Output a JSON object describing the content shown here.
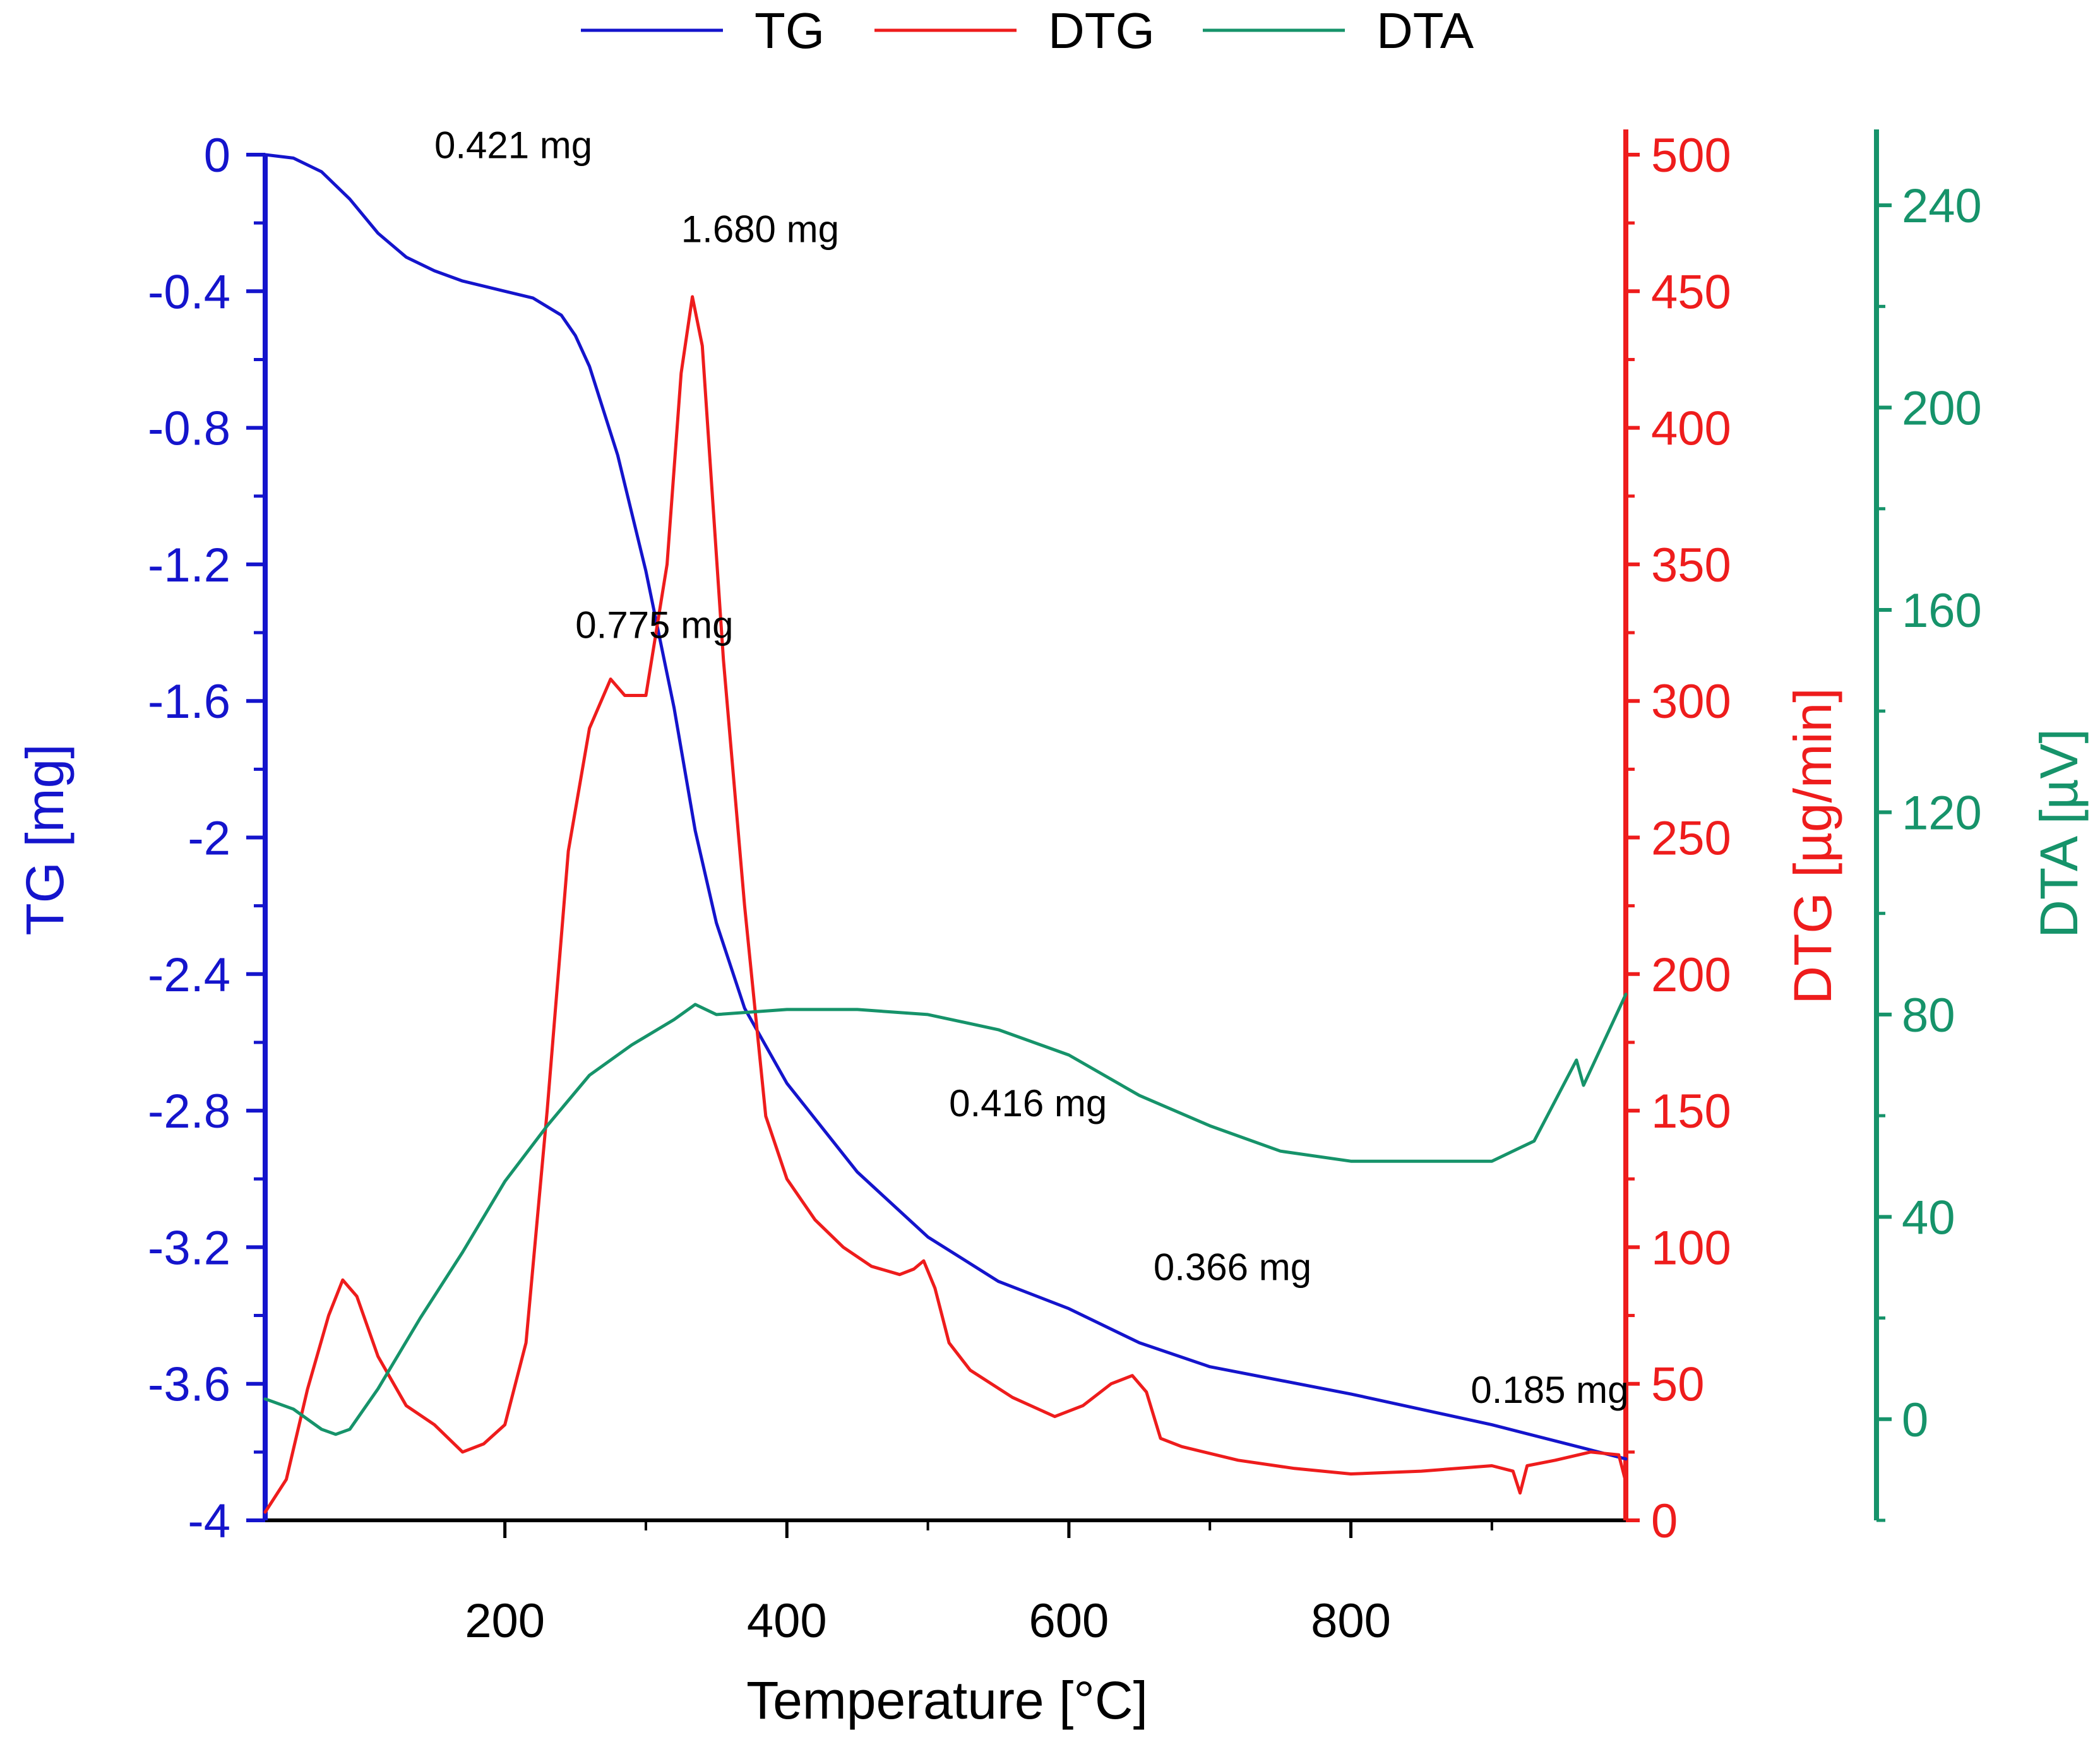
{
  "chart_data": {
    "type": "line",
    "title": "",
    "xlabel": "Temperature [°C]",
    "xlim": [
      30,
      995
    ],
    "xticks": [
      200,
      400,
      600,
      800
    ],
    "legend_position": "top-center",
    "series": [
      {
        "name": "TG",
        "axis": "left",
        "color": "#1414cc",
        "points": [
          [
            30,
            0
          ],
          [
            50,
            -0.01
          ],
          [
            70,
            -0.05
          ],
          [
            90,
            -0.13
          ],
          [
            110,
            -0.23
          ],
          [
            130,
            -0.3
          ],
          [
            150,
            -0.34
          ],
          [
            170,
            -0.37
          ],
          [
            200,
            -0.4
          ],
          [
            220,
            -0.42
          ],
          [
            240,
            -0.47
          ],
          [
            250,
            -0.53
          ],
          [
            260,
            -0.62
          ],
          [
            280,
            -0.88
          ],
          [
            300,
            -1.22
          ],
          [
            320,
            -1.62
          ],
          [
            335,
            -1.98
          ],
          [
            350,
            -2.25
          ],
          [
            370,
            -2.5
          ],
          [
            400,
            -2.72
          ],
          [
            450,
            -2.98
          ],
          [
            500,
            -3.17
          ],
          [
            550,
            -3.3
          ],
          [
            600,
            -3.38
          ],
          [
            620,
            -3.42
          ],
          [
            650,
            -3.48
          ],
          [
            700,
            -3.55
          ],
          [
            800,
            -3.63
          ],
          [
            900,
            -3.72
          ],
          [
            995,
            -3.82
          ]
        ]
      },
      {
        "name": "DTG",
        "axis": "right",
        "color": "#ee1c1c",
        "points": [
          [
            30,
            3
          ],
          [
            45,
            15
          ],
          [
            60,
            48
          ],
          [
            75,
            75
          ],
          [
            85,
            88
          ],
          [
            95,
            82
          ],
          [
            110,
            60
          ],
          [
            130,
            42
          ],
          [
            150,
            35
          ],
          [
            170,
            25
          ],
          [
            185,
            28
          ],
          [
            200,
            35
          ],
          [
            215,
            65
          ],
          [
            230,
            150
          ],
          [
            245,
            245
          ],
          [
            260,
            290
          ],
          [
            275,
            308
          ],
          [
            285,
            302
          ],
          [
            300,
            302
          ],
          [
            315,
            350
          ],
          [
            325,
            420
          ],
          [
            333,
            448
          ],
          [
            340,
            430
          ],
          [
            355,
            315
          ],
          [
            370,
            225
          ],
          [
            385,
            148
          ],
          [
            400,
            125
          ],
          [
            420,
            110
          ],
          [
            440,
            100
          ],
          [
            460,
            93
          ],
          [
            480,
            90
          ],
          [
            490,
            92
          ],
          [
            497,
            95
          ],
          [
            505,
            85
          ],
          [
            515,
            65
          ],
          [
            530,
            55
          ],
          [
            560,
            45
          ],
          [
            590,
            38
          ],
          [
            610,
            42
          ],
          [
            630,
            50
          ],
          [
            645,
            53
          ],
          [
            655,
            47
          ],
          [
            665,
            30
          ],
          [
            680,
            27
          ],
          [
            720,
            22
          ],
          [
            760,
            19
          ],
          [
            800,
            17
          ],
          [
            850,
            18
          ],
          [
            900,
            20
          ],
          [
            915,
            18
          ],
          [
            920,
            10
          ],
          [
            925,
            20
          ],
          [
            945,
            22
          ],
          [
            970,
            25
          ],
          [
            990,
            24
          ],
          [
            995,
            14
          ]
        ]
      },
      {
        "name": "DTA",
        "axis": "right2",
        "color": "#16936a",
        "points": [
          [
            30,
            4
          ],
          [
            50,
            2
          ],
          [
            70,
            -2
          ],
          [
            80,
            -3
          ],
          [
            90,
            -2
          ],
          [
            110,
            6
          ],
          [
            140,
            20
          ],
          [
            170,
            33
          ],
          [
            200,
            47
          ],
          [
            230,
            58
          ],
          [
            260,
            68
          ],
          [
            290,
            74
          ],
          [
            320,
            79
          ],
          [
            335,
            82
          ],
          [
            350,
            80
          ],
          [
            400,
            81
          ],
          [
            450,
            81
          ],
          [
            500,
            80
          ],
          [
            550,
            77
          ],
          [
            600,
            72
          ],
          [
            650,
            64
          ],
          [
            700,
            58
          ],
          [
            750,
            53
          ],
          [
            800,
            51
          ],
          [
            850,
            51
          ],
          [
            900,
            51
          ],
          [
            930,
            55
          ],
          [
            960,
            71
          ],
          [
            965,
            66
          ],
          [
            980,
            75
          ],
          [
            995,
            84
          ]
        ]
      }
    ],
    "axes": {
      "left": {
        "label": "TG [mg]",
        "lim": [
          -4,
          0
        ],
        "ticks": [
          "0",
          "-0.4",
          "-0.8",
          "-1.2",
          "-1.6",
          "-2",
          "-2.4",
          "-2.8",
          "-3.2",
          "-3.6",
          "-4"
        ],
        "color": "#1414cc"
      },
      "right": {
        "label": "DTG [µg/min]",
        "lim": [
          0,
          500
        ],
        "ticks": [
          "0",
          "50",
          "100",
          "150",
          "200",
          "250",
          "300",
          "350",
          "400",
          "450",
          "500"
        ],
        "color": "#ee1c1c"
      },
      "right2": {
        "label": "DTA [µV]",
        "lim": [
          -20,
          250
        ],
        "ticks": [
          "0",
          "40",
          "80",
          "120",
          "160",
          "200",
          "240"
        ],
        "color": "#16936a"
      }
    },
    "annotations": [
      {
        "text": "0.421 mg",
        "x": 150,
        "y_axis": "left",
        "y": -0.01
      },
      {
        "text": "1.680 mg",
        "x": 325,
        "y_axis": "right",
        "y": 468
      },
      {
        "text": "0.775 mg",
        "x": 250,
        "y_axis": "right",
        "y": 323
      },
      {
        "text": "0.416 mg",
        "x": 515,
        "y_axis": "right",
        "y": 148
      },
      {
        "text": "0.366 mg",
        "x": 660,
        "y_axis": "right",
        "y": 88
      },
      {
        "text": "0.185 mg",
        "x": 885,
        "y_axis": "right",
        "y": 43
      }
    ]
  }
}
